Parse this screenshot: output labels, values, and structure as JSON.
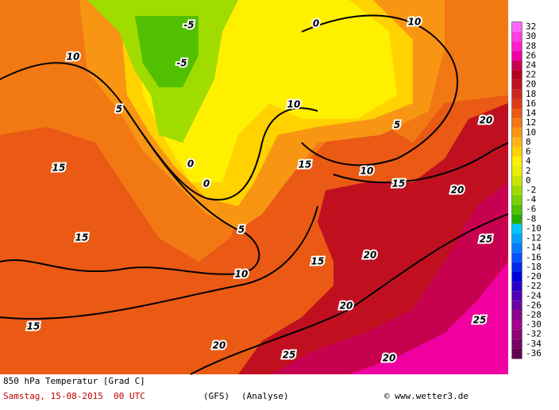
{
  "header": {
    "title": "850 hPa Temperatur [Grad C]",
    "date": "Samstag, 15-08-2015  00 UTC",
    "model": "(GFS)",
    "run": "(Analyse)",
    "credit": "© www.wetter3.de"
  },
  "colorbar": {
    "ticks": [
      32,
      30,
      28,
      26,
      24,
      22,
      20,
      18,
      16,
      14,
      12,
      10,
      8,
      6,
      4,
      2,
      0,
      -2,
      -4,
      -6,
      -8,
      -10,
      -12,
      -14,
      -16,
      -18,
      -20,
      -22,
      -24,
      -26,
      -28,
      -30,
      -32,
      -34,
      -36
    ],
    "colors": [
      "#ff66ff",
      "#ff3fe0",
      "#ff1ec8",
      "#f000a0",
      "#c80050",
      "#b4001e",
      "#c01020",
      "#d0261e",
      "#e03c1a",
      "#ea5a14",
      "#f27814",
      "#f89614",
      "#ffb414",
      "#ffd200",
      "#fff000",
      "#e8f000",
      "#c8e600",
      "#a0dc00",
      "#78d200",
      "#50c000",
      "#28aa00",
      "#00c8ff",
      "#00a0ff",
      "#0078ff",
      "#0050ff",
      "#0028f0",
      "#0000dc",
      "#2800c8",
      "#5000b4",
      "#6e00a0",
      "#8c008c",
      "#a0008c",
      "#8c0078",
      "#780064",
      "#640050"
    ]
  },
  "contour_labels": [
    "10",
    "10",
    "10",
    "10",
    "10",
    "5",
    "5",
    "5",
    "15",
    "15",
    "15",
    "15",
    "15",
    "15",
    "20",
    "20",
    "20",
    "20",
    "20",
    "20",
    "25",
    "25",
    "25",
    "0",
    "0",
    "0",
    "-5",
    "-5"
  ]
}
